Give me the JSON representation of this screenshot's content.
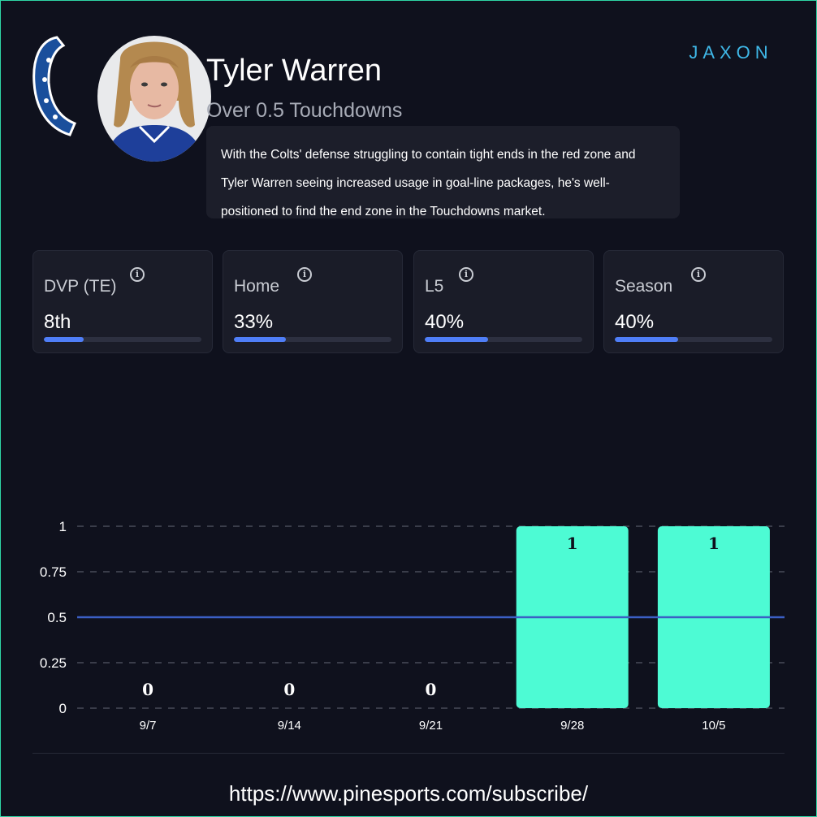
{
  "player": {
    "name": "Tyler Warren",
    "prop": "Over 0.5 Touchdowns",
    "summary": "With the Colts' defense struggling to contain tight ends in the red zone and Tyler Warren seeing increased usage in goal-line packages, he's well-positioned to find the end zone in the Touchdowns market."
  },
  "brand": {
    "name": "JAXON",
    "color": "#3fb8e8"
  },
  "stats": [
    {
      "label": "DVP (TE)",
      "value": "8th",
      "fill_fraction": 0.25
    },
    {
      "label": "Home",
      "value": "33%",
      "fill_fraction": 0.33
    },
    {
      "label": "L5",
      "value": "40%",
      "fill_fraction": 0.4
    },
    {
      "label": "Season",
      "value": "40%",
      "fill_fraction": 0.4
    }
  ],
  "chart_data": {
    "type": "bar",
    "categories": [
      "9/7",
      "9/14",
      "9/21",
      "9/28",
      "10/5"
    ],
    "values": [
      0,
      0,
      0,
      1,
      1
    ],
    "value_labels": [
      "0",
      "0",
      "0",
      "1",
      "1"
    ],
    "yticks": [
      "0",
      "0.25",
      "0.5",
      "0.75",
      "1"
    ],
    "ylim": [
      0,
      1
    ],
    "line_value": 0.5,
    "bar_color": "#4dfbd4",
    "line_color": "#3b5fc4",
    "grid": true
  },
  "footer": {
    "url": "https://www.pinesports.com/subscribe/"
  },
  "colors": {
    "accent": "#4f7ef7",
    "background": "#0f111d",
    "card": "#1a1c28",
    "border": "#2fd6a6"
  }
}
